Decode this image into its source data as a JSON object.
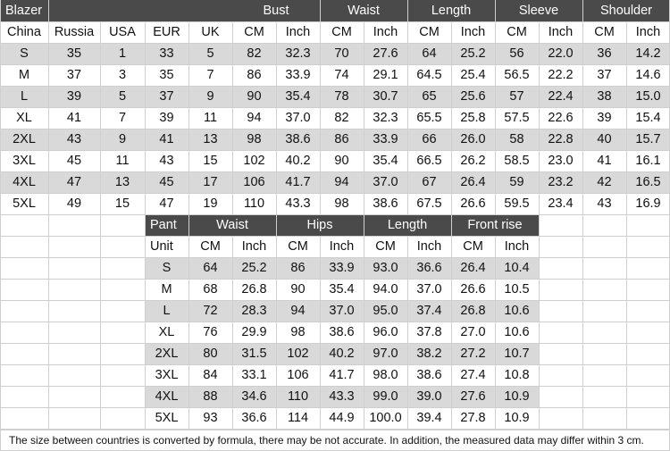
{
  "colors": {
    "header_bg": "#4a4a4a",
    "stripe_bg": "#d9d9d9",
    "grid_line": "#cfcfcf",
    "header_text": "#ffffff",
    "body_text": "#111111"
  },
  "blazer": {
    "title": "Blazer",
    "groups": [
      "Bust",
      "Waist",
      "Length",
      "Sleeve",
      "Shoulder"
    ],
    "columns": [
      "China",
      "Russia",
      "USA",
      "EUR",
      "UK",
      "CM",
      "Inch",
      "CM",
      "Inch",
      "CM",
      "Inch",
      "CM",
      "Inch",
      "CM",
      "Inch"
    ],
    "rows": [
      [
        "S",
        "35",
        "1",
        "33",
        "5",
        "82",
        "32.3",
        "70",
        "27.6",
        "64",
        "25.2",
        "56",
        "22.0",
        "36",
        "14.2"
      ],
      [
        "M",
        "37",
        "3",
        "35",
        "7",
        "86",
        "33.9",
        "74",
        "29.1",
        "64.5",
        "25.4",
        "56.5",
        "22.2",
        "37",
        "14.6"
      ],
      [
        "L",
        "39",
        "5",
        "37",
        "9",
        "90",
        "35.4",
        "78",
        "30.7",
        "65",
        "25.6",
        "57",
        "22.4",
        "38",
        "15.0"
      ],
      [
        "XL",
        "41",
        "7",
        "39",
        "11",
        "94",
        "37.0",
        "82",
        "32.3",
        "65.5",
        "25.8",
        "57.5",
        "22.6",
        "39",
        "15.4"
      ],
      [
        "2XL",
        "43",
        "9",
        "41",
        "13",
        "98",
        "38.6",
        "86",
        "33.9",
        "66",
        "26.0",
        "58",
        "22.8",
        "40",
        "15.7"
      ],
      [
        "3XL",
        "45",
        "11",
        "43",
        "15",
        "102",
        "40.2",
        "90",
        "35.4",
        "66.5",
        "26.2",
        "58.5",
        "23.0",
        "41",
        "16.1"
      ],
      [
        "4XL",
        "47",
        "13",
        "45",
        "17",
        "106",
        "41.7",
        "94",
        "37.0",
        "67",
        "26.4",
        "59",
        "23.2",
        "42",
        "16.5"
      ],
      [
        "5XL",
        "49",
        "15",
        "47",
        "19",
        "110",
        "43.3",
        "98",
        "38.6",
        "67.5",
        "26.6",
        "59.5",
        "23.4",
        "43",
        "16.9"
      ]
    ]
  },
  "pant": {
    "title": "Pant",
    "groups": [
      "Waist",
      "Hips",
      "Length",
      "Front rise"
    ],
    "columns": [
      "Unit",
      "CM",
      "Inch",
      "CM",
      "Inch",
      "CM",
      "Inch",
      "CM",
      "Inch"
    ],
    "rows": [
      [
        "S",
        "64",
        "25.2",
        "86",
        "33.9",
        "93.0",
        "36.6",
        "26.4",
        "10.4"
      ],
      [
        "M",
        "68",
        "26.8",
        "90",
        "35.4",
        "94.0",
        "37.0",
        "26.6",
        "10.5"
      ],
      [
        "L",
        "72",
        "28.3",
        "94",
        "37.0",
        "95.0",
        "37.4",
        "26.8",
        "10.6"
      ],
      [
        "XL",
        "76",
        "29.9",
        "98",
        "38.6",
        "96.0",
        "37.8",
        "27.0",
        "10.6"
      ],
      [
        "2XL",
        "80",
        "31.5",
        "102",
        "40.2",
        "97.0",
        "38.2",
        "27.2",
        "10.7"
      ],
      [
        "3XL",
        "84",
        "33.1",
        "106",
        "41.7",
        "98.0",
        "38.6",
        "27.4",
        "10.8"
      ],
      [
        "4XL",
        "88",
        "34.6",
        "110",
        "43.3",
        "99.0",
        "39.0",
        "27.6",
        "10.9"
      ],
      [
        "5XL",
        "93",
        "36.6",
        "114",
        "44.9",
        "100.0",
        "39.4",
        "27.8",
        "10.9"
      ]
    ]
  },
  "note": "The size between countries is converted by formula, there may be not accurate. In addition, the measured data may differ within 3 cm."
}
